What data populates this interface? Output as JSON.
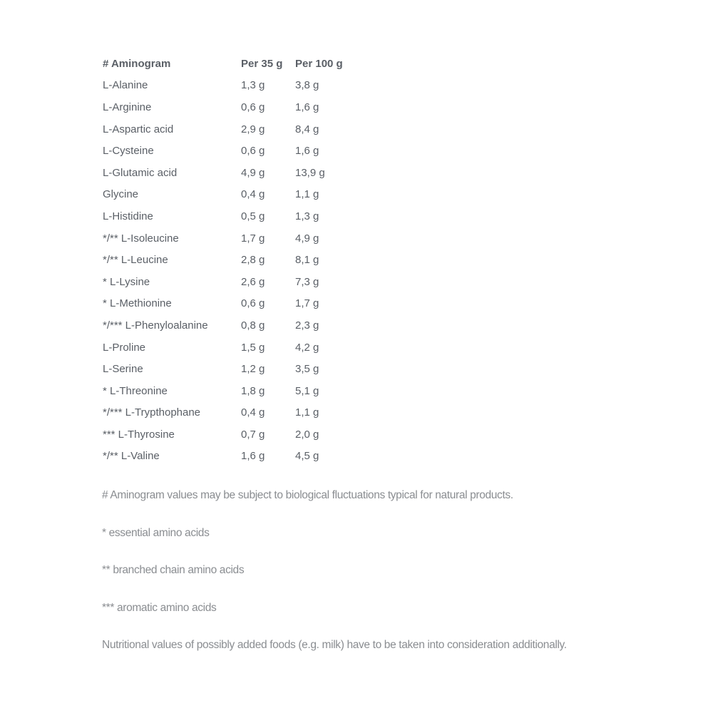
{
  "table": {
    "headers": [
      "# Aminogram",
      "Per 35 g",
      "Per 100 g"
    ],
    "rows": [
      [
        "L-Alanine",
        "1,3 g",
        "3,8 g"
      ],
      [
        "L-Arginine",
        "0,6 g",
        "1,6 g"
      ],
      [
        "L-Aspartic acid",
        "2,9 g",
        "8,4 g"
      ],
      [
        "L-Cysteine",
        "0,6 g",
        "1,6 g"
      ],
      [
        "L-Glutamic acid",
        "4,9 g",
        "13,9 g"
      ],
      [
        "Glycine",
        "0,4 g",
        "1,1 g"
      ],
      [
        "L-Histidine",
        "0,5 g",
        "1,3 g"
      ],
      [
        "*/** L-Isoleucine",
        "1,7 g",
        "4,9 g"
      ],
      [
        "*/** L-Leucine",
        "2,8 g",
        "8,1 g"
      ],
      [
        "* L-Lysine",
        "2,6 g",
        "7,3 g"
      ],
      [
        "* L-Methionine",
        "0,6 g",
        "1,7 g"
      ],
      [
        "*/*** L-Phenyloalanine",
        "0,8 g",
        "2,3 g"
      ],
      [
        "L-Proline",
        "1,5 g",
        "4,2 g"
      ],
      [
        "L-Serine",
        "1,2 g",
        "3,5 g"
      ],
      [
        "* L-Threonine",
        "1,8 g",
        "5,1 g"
      ],
      [
        "*/*** L-Trypthophane",
        "0,4 g",
        "1,1 g"
      ],
      [
        "*** L-Thyrosine",
        "0,7 g",
        "2,0 g"
      ],
      [
        "*/** L-Valine",
        "1,6 g",
        "4,5 g"
      ]
    ]
  },
  "notes": [
    "# Aminogram values may be subject to biological fluctuations typical for natural products.",
    "* essential amino acids",
    "** branched chain amino acids",
    "*** aromatic amino acids",
    "Nutritional values of possibly added foods (e.g. milk) have to be taken into consideration additionally."
  ]
}
